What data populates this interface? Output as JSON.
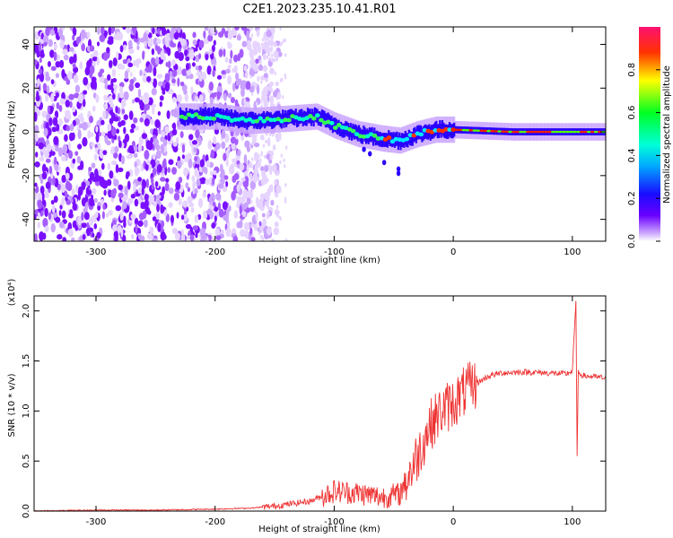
{
  "title": "C2E1.2023.235.10.41.R01",
  "chart_data": [
    {
      "type": "heatmap",
      "title": "",
      "xlabel": "Height of straight line (km)",
      "ylabel": "Frequency (Hz)",
      "xlim": [
        -352,
        128
      ],
      "ylim": [
        -50,
        48
      ],
      "x_ticks": [
        -300,
        -200,
        -100,
        0,
        100
      ],
      "y_ticks": [
        -40,
        -20,
        0,
        20,
        40
      ],
      "colorbar": {
        "label": "Normalized spectral amplitude",
        "range": [
          0,
          1
        ],
        "ticks": [
          "0.0",
          "0.2",
          "0.4",
          "0.6",
          "0.8"
        ],
        "colors": [
          "#ffffff",
          "#e9d6ff",
          "#b472ff",
          "#6a00ff",
          "#1a0cff",
          "#00d8ff",
          "#00ff44",
          "#ffff00",
          "#ff2200",
          "#ff1060"
        ]
      },
      "noise_region_x": [
        -352,
        -165
      ],
      "ridge": {
        "description_points_x": [
          -230,
          -200,
          -170,
          -140,
          -115,
          -100,
          -80,
          -60,
          -45,
          -30,
          -15,
          0,
          50,
          100,
          128
        ],
        "frequency_hz": [
          7,
          7,
          5,
          6,
          7,
          3,
          -1,
          -3,
          -4,
          -1,
          1,
          1,
          0,
          0,
          0
        ]
      }
    },
    {
      "type": "line",
      "title": "",
      "xlabel": "Height of straight line (km)",
      "ylabel": "SNR (10 * v/v)",
      "y_multiplier": "(x10⁴)",
      "xlim": [
        -352,
        128
      ],
      "ylim": [
        0,
        2.15
      ],
      "x_ticks": [
        -300,
        -200,
        -100,
        0,
        100
      ],
      "y_ticks": [
        "0.0",
        "0.5",
        "1.0",
        "1.5",
        "2.0"
      ],
      "series": [
        {
          "color": "#ee3333",
          "points_x": [
            -352,
            -300,
            -250,
            -200,
            -170,
            -150,
            -120,
            -100,
            -80,
            -60,
            -45,
            -30,
            -20,
            -10,
            0,
            10,
            20,
            30,
            40,
            60,
            80,
            95,
            100,
            103,
            104,
            105,
            110,
            128
          ],
          "points_y": [
            0.0,
            0.01,
            0.01,
            0.02,
            0.03,
            0.05,
            0.1,
            0.2,
            0.18,
            0.14,
            0.17,
            0.55,
            0.85,
            1.0,
            1.08,
            1.2,
            1.28,
            1.35,
            1.38,
            1.39,
            1.38,
            1.37,
            1.4,
            2.1,
            0.55,
            1.38,
            1.35,
            1.33
          ]
        }
      ]
    }
  ]
}
